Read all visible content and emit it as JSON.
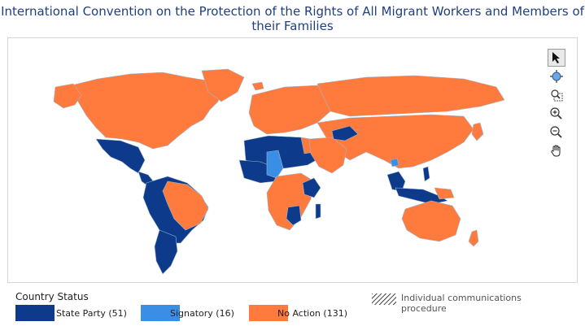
{
  "title": "International Convention on the Protection of the Rights of All Migrant Workers and Members of their Families",
  "colors": {
    "state_party": "#0d3a8a",
    "signatory": "#3b8ee6",
    "no_action": "#ff7a3d",
    "border": "#9fb7cc"
  },
  "toolbar": [
    {
      "name": "select-tool",
      "icon": "arrow-cursor-icon",
      "active": true
    },
    {
      "name": "pan-map-tool",
      "icon": "globe-icon",
      "active": false
    },
    {
      "name": "zoom-box-tool",
      "icon": "magnifier-box-icon",
      "active": false
    },
    {
      "name": "zoom-in-tool",
      "icon": "zoom-in-icon",
      "active": false
    },
    {
      "name": "zoom-out-tool",
      "icon": "zoom-out-icon",
      "active": false
    },
    {
      "name": "hand-pan-tool",
      "icon": "hand-icon",
      "active": false
    }
  ],
  "legend": {
    "title": "Country Status",
    "items": [
      {
        "key": "state_party",
        "label": "State Party (51)"
      },
      {
        "key": "signatory",
        "label": "Signatory (16)"
      },
      {
        "key": "no_action",
        "label": "No Action (131)"
      }
    ],
    "hatch_label": "Individual communications procedure"
  }
}
